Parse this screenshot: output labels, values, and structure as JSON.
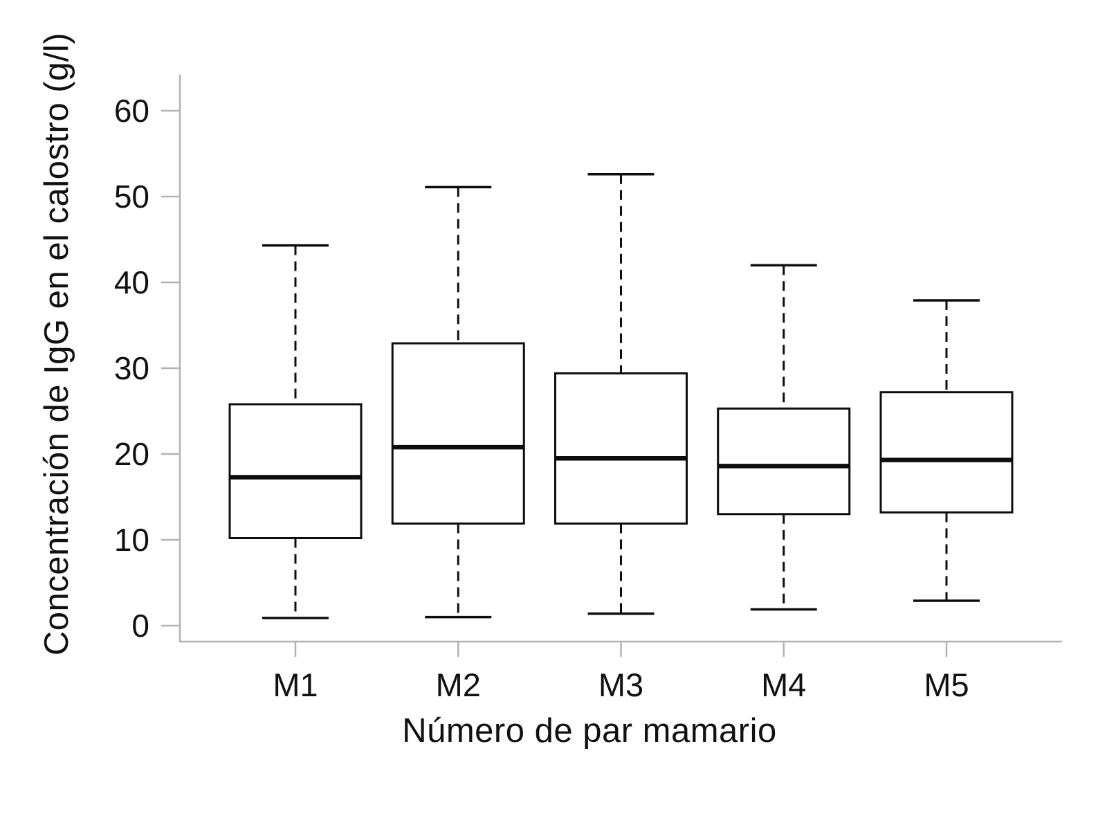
{
  "chart_data": {
    "type": "boxplot",
    "title": "",
    "xlabel": "Número de par mamario",
    "ylabel": "Concentración de IgG en el calostro (g/l)",
    "categories": [
      "M1",
      "M2",
      "M3",
      "M4",
      "M5"
    ],
    "yticks": [
      0,
      10,
      20,
      30,
      40,
      50,
      60
    ],
    "ylim": [
      0,
      64
    ],
    "grid": false,
    "legend": "none",
    "series": [
      {
        "category": "M1",
        "whisker_low": 0.9,
        "q1": 10.2,
        "median": 17.3,
        "q3": 25.8,
        "whisker_high": 44.3
      },
      {
        "category": "M2",
        "whisker_low": 1.0,
        "q1": 11.9,
        "median": 20.8,
        "q3": 32.9,
        "whisker_high": 51.1
      },
      {
        "category": "M3",
        "whisker_low": 1.4,
        "q1": 11.9,
        "median": 19.5,
        "q3": 29.4,
        "whisker_high": 52.6
      },
      {
        "category": "M4",
        "whisker_low": 1.9,
        "q1": 13.0,
        "median": 18.6,
        "q3": 25.3,
        "whisker_high": 42.0
      },
      {
        "category": "M5",
        "whisker_low": 2.9,
        "q1": 13.2,
        "median": 19.3,
        "q3": 27.2,
        "whisker_high": 37.9
      }
    ],
    "colors": {
      "box_stroke": "#0d0d0d",
      "median": "#0d0d0d",
      "whisker": "#0d0d0d",
      "axis": "#b2b2b2",
      "text": "#111111",
      "background": "#ffffff"
    }
  }
}
